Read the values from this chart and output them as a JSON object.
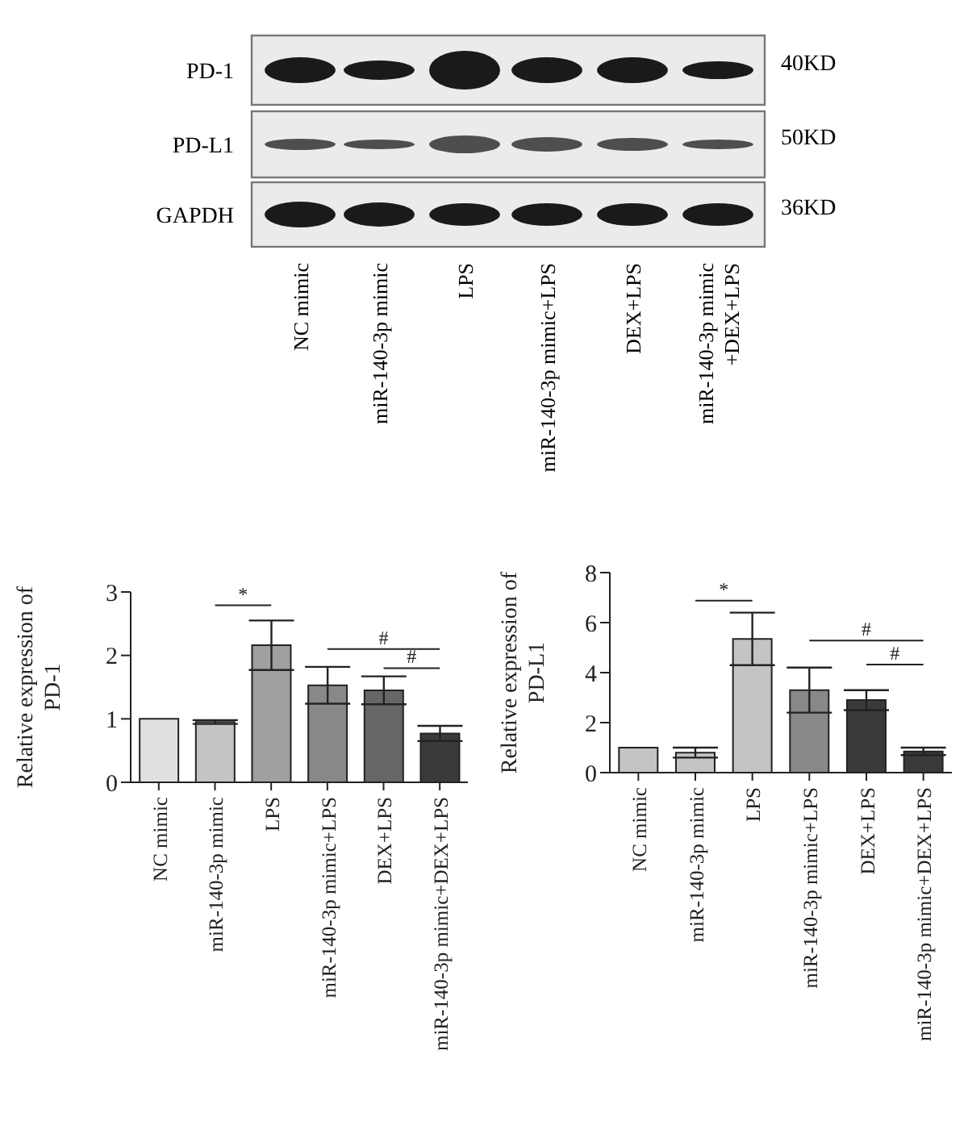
{
  "chart_data": [
    {
      "type": "other",
      "categories": [
        "NC mimic",
        "miR-140-3p mimic",
        "LPS",
        "miR-140-3p mimic+LPS",
        "DEX+LPS",
        "miR-140-3p mimic\n+DEX+LPS"
      ],
      "y_categories": [
        "PD-1",
        "PD-L1",
        "GAPDH"
      ],
      "y2_categories": [
        "40KD",
        "50KD",
        "36KD"
      ]
    },
    {
      "type": "bar",
      "ylabel": "Relative expression of PD-1",
      "categories": [
        "NC mimic",
        "miR-140-3p mimic",
        "LPS",
        "miR-140-3p mimic+LPS",
        "DEX+LPS",
        "miR-140-3p mimic+DEX+LPS"
      ],
      "values": [
        1.0,
        0.95,
        2.16,
        1.53,
        1.45,
        0.77
      ],
      "errors": [
        null,
        0.03,
        0.39,
        0.29,
        0.22,
        0.12
      ],
      "colors": [
        "#e0e0e0",
        "#c4c4c4",
        "#a0a0a0",
        "#888888",
        "#666666",
        "#3a3a3a"
      ],
      "ylim": [
        0,
        3
      ],
      "yticks": [
        0,
        1,
        2,
        3
      ],
      "annotations": [
        "*",
        "#",
        "#"
      ]
    },
    {
      "type": "bar",
      "ylabel": "Relative expression of PD-L1",
      "categories": [
        "NC mimic",
        "miR-140-3p mimic",
        "LPS",
        "miR-140-3p mimic+LPS",
        "DEX+LPS",
        "miR-140-3p mimic+DEX+LPS"
      ],
      "values": [
        1.0,
        0.8,
        5.35,
        3.3,
        2.9,
        0.85
      ],
      "errors": [
        null,
        0.2,
        1.05,
        0.9,
        0.4,
        0.15
      ],
      "colors": [
        "#c4c4c4",
        "#c4c4c4",
        "#c4c4c4",
        "#888888",
        "#3a3a3a",
        "#3a3a3a"
      ],
      "ylim": [
        0,
        8
      ],
      "yticks": [
        0,
        2,
        4,
        6,
        8
      ],
      "annotations": [
        "*",
        "#",
        "#"
      ]
    }
  ]
}
